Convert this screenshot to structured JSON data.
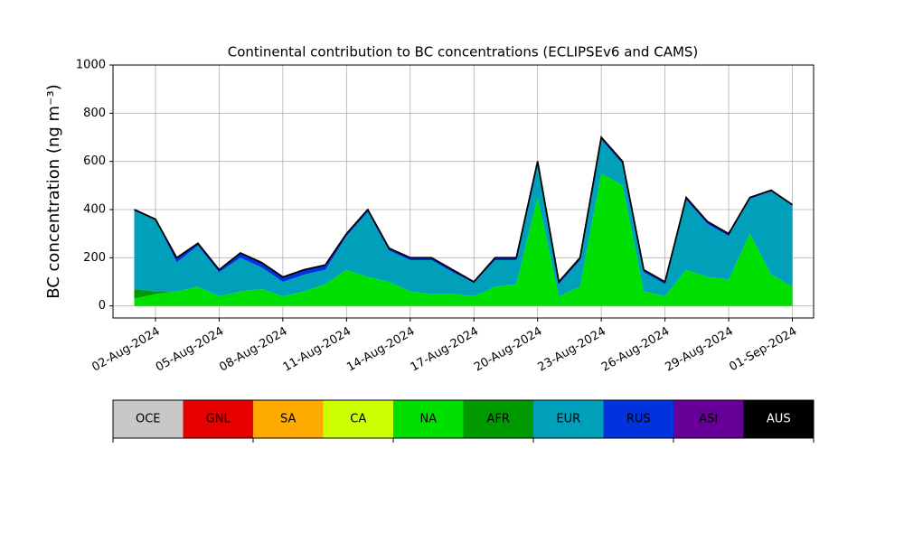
{
  "chart_data": {
    "type": "stacked_area",
    "title": "Continental contribution to BC concentrations (ECLIPSEv6 and CAMS)",
    "y_label": "BC concentration (ng m⁻³)",
    "x": [
      "2024-08-01",
      "2024-08-02",
      "2024-08-03",
      "2024-08-04",
      "2024-08-05",
      "2024-08-06",
      "2024-08-07",
      "2024-08-08",
      "2024-08-09",
      "2024-08-10",
      "2024-08-11",
      "2024-08-12",
      "2024-08-13",
      "2024-08-14",
      "2024-08-15",
      "2024-08-16",
      "2024-08-17",
      "2024-08-18",
      "2024-08-19",
      "2024-08-20",
      "2024-08-21",
      "2024-08-22",
      "2024-08-23",
      "2024-08-24",
      "2024-08-25",
      "2024-08-26",
      "2024-08-27",
      "2024-08-28",
      "2024-08-29",
      "2024-08-30",
      "2024-08-31",
      "2024-09-01"
    ],
    "series": [
      {
        "name": "OCE",
        "color": "#c8c8c8",
        "values": [
          0,
          0,
          0,
          0,
          0,
          0,
          0,
          0,
          0,
          0,
          0,
          0,
          0,
          0,
          0,
          0,
          0,
          0,
          0,
          0,
          0,
          0,
          0,
          0,
          0,
          0,
          0,
          0,
          0,
          0,
          0,
          0
        ]
      },
      {
        "name": "GNL",
        "color": "#e60000",
        "values": [
          0,
          0,
          0,
          0,
          0,
          0,
          0,
          0,
          0,
          0,
          0,
          0,
          0,
          0,
          0,
          0,
          0,
          0,
          0,
          0,
          0,
          0,
          0,
          0,
          0,
          0,
          0,
          0,
          0,
          0,
          0,
          0
        ]
      },
      {
        "name": "SA",
        "color": "#ffaa00",
        "values": [
          0,
          0,
          0,
          0,
          0,
          0,
          0,
          0,
          0,
          0,
          0,
          0,
          0,
          0,
          0,
          0,
          0,
          0,
          0,
          0,
          0,
          0,
          0,
          0,
          0,
          0,
          0,
          0,
          0,
          0,
          0,
          0
        ]
      },
      {
        "name": "CA",
        "color": "#ccff00",
        "values": [
          0,
          0,
          0,
          0,
          0,
          0,
          0,
          0,
          0,
          0,
          0,
          0,
          0,
          0,
          0,
          0,
          0,
          0,
          0,
          0,
          0,
          0,
          0,
          0,
          0,
          0,
          0,
          0,
          0,
          0,
          0,
          0
        ]
      },
      {
        "name": "NA",
        "color": "#00e000",
        "values": [
          30,
          50,
          60,
          80,
          40,
          60,
          70,
          40,
          60,
          90,
          150,
          120,
          100,
          60,
          50,
          50,
          40,
          80,
          90,
          450,
          40,
          80,
          550,
          500,
          60,
          40,
          150,
          120,
          110,
          300,
          130,
          80
        ]
      },
      {
        "name": "AFR",
        "color": "#009900",
        "values": [
          40,
          10,
          0,
          0,
          0,
          0,
          0,
          0,
          0,
          0,
          0,
          0,
          0,
          0,
          0,
          0,
          0,
          0,
          0,
          0,
          0,
          0,
          0,
          0,
          0,
          0,
          0,
          0,
          0,
          0,
          0,
          0
        ]
      },
      {
        "name": "EUR",
        "color": "#00a0bb",
        "values": [
          330,
          300,
          120,
          170,
          100,
          140,
          90,
          60,
          70,
          60,
          140,
          270,
          130,
          130,
          140,
          90,
          55,
          110,
          100,
          140,
          50,
          110,
          140,
          90,
          80,
          50,
          290,
          220,
          180,
          145,
          345,
          335
        ]
      },
      {
        "name": "RUS",
        "color": "#0033dd",
        "values": [
          0,
          0,
          20,
          10,
          10,
          20,
          20,
          20,
          20,
          20,
          10,
          10,
          10,
          10,
          10,
          10,
          5,
          10,
          10,
          10,
          10,
          10,
          10,
          10,
          10,
          10,
          10,
          10,
          10,
          5,
          5,
          5
        ]
      },
      {
        "name": "ASI",
        "color": "#660099",
        "values": [
          0,
          0,
          0,
          0,
          0,
          0,
          0,
          0,
          0,
          0,
          0,
          0,
          0,
          0,
          0,
          0,
          0,
          0,
          0,
          0,
          0,
          0,
          0,
          0,
          0,
          0,
          0,
          0,
          0,
          0,
          0,
          0
        ]
      },
      {
        "name": "AUS",
        "color": "#000000",
        "values": [
          0,
          0,
          0,
          0,
          0,
          0,
          0,
          0,
          0,
          0,
          0,
          0,
          0,
          0,
          0,
          0,
          0,
          0,
          0,
          0,
          0,
          0,
          0,
          0,
          0,
          0,
          0,
          0,
          0,
          0,
          0,
          0
        ]
      }
    ],
    "xlim": [
      "2024-07-31",
      "2024-09-02"
    ],
    "xticks": [
      {
        "value": "2024-08-02",
        "label": "02-Aug-2024"
      },
      {
        "value": "2024-08-05",
        "label": "05-Aug-2024"
      },
      {
        "value": "2024-08-08",
        "label": "08-Aug-2024"
      },
      {
        "value": "2024-08-11",
        "label": "11-Aug-2024"
      },
      {
        "value": "2024-08-14",
        "label": "14-Aug-2024"
      },
      {
        "value": "2024-08-17",
        "label": "17-Aug-2024"
      },
      {
        "value": "2024-08-20",
        "label": "20-Aug-2024"
      },
      {
        "value": "2024-08-23",
        "label": "23-Aug-2024"
      },
      {
        "value": "2024-08-26",
        "label": "26-Aug-2024"
      },
      {
        "value": "2024-08-29",
        "label": "29-Aug-2024"
      },
      {
        "value": "2024-09-01",
        "label": "01-Sep-2024"
      }
    ],
    "ylim": [
      -50,
      1000
    ],
    "yticks": [
      0,
      200,
      400,
      600,
      800,
      1000
    ],
    "grid": true
  }
}
